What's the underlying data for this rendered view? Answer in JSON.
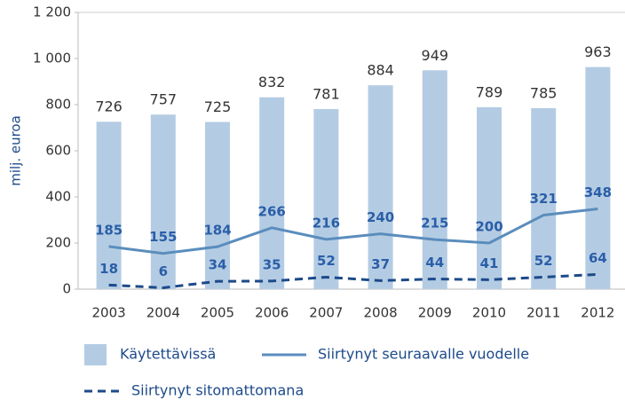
{
  "chart_data": {
    "type": "bar",
    "y_label": "milj. euroa",
    "categories": [
      "2003",
      "2004",
      "2005",
      "2006",
      "2007",
      "2008",
      "2009",
      "2010",
      "2011",
      "2012"
    ],
    "series": [
      {
        "name": "Käytettävissä",
        "type": "bar",
        "color": "#b4cce3",
        "values": [
          726,
          757,
          725,
          832,
          781,
          884,
          949,
          789,
          785,
          963
        ]
      },
      {
        "name": "Siirtynyt seuraavalle vuodelle",
        "type": "line",
        "line_style": "solid",
        "color": "#5a8dbd",
        "values": [
          185,
          155,
          184,
          266,
          216,
          240,
          215,
          200,
          321,
          348
        ]
      },
      {
        "name": "Siirtynyt sitomattomana",
        "type": "line",
        "line_style": "dashed",
        "color": "#1d4a8a",
        "values": [
          18,
          6,
          34,
          35,
          52,
          37,
          44,
          41,
          52,
          64
        ]
      }
    ],
    "ylim": [
      0,
      1200
    ],
    "yticks": [
      0,
      200,
      400,
      600,
      800,
      {
        "value": 1000,
        "label": "1 000"
      },
      {
        "value": 1200,
        "label": "1 200"
      }
    ],
    "grid": false
  }
}
